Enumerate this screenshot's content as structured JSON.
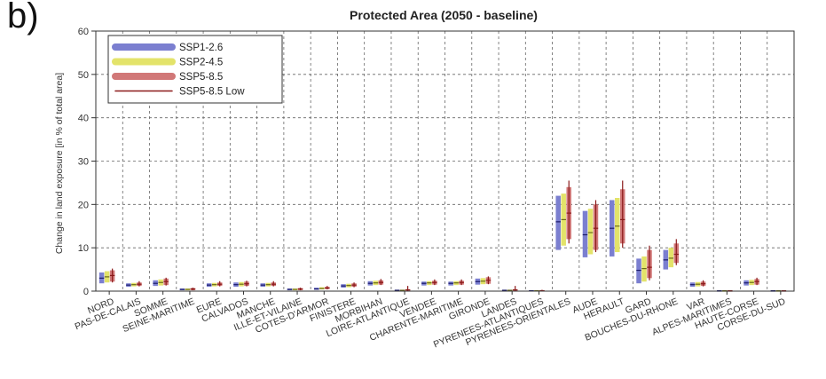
{
  "panel_label": "b)",
  "chart_data": {
    "type": "bar",
    "title": "Protected Area (2050 - baseline)",
    "xlabel": "",
    "ylabel": "Change in land exposure [in % of total area]",
    "ylim": [
      0,
      60
    ],
    "yticks": [
      0,
      10,
      20,
      30,
      40,
      50,
      60
    ],
    "grid": true,
    "legend_position": "top-left",
    "categories": [
      "NORD",
      "PAS-DE-CALAIS",
      "SOMME",
      "SEINE-MARITIME",
      "EURE",
      "CALVADOS",
      "MANCHE",
      "ILLE-ET-VILAINE",
      "COTES-D'ARMOR",
      "FINISTERE",
      "MORBIHAN",
      "LOIRE-ATLANTIQUE",
      "VENDEE",
      "CHARENTE-MARITIME",
      "GIRONDE",
      "LANDES",
      "PYRENEES-ATLANTIQUES",
      "PYRENEES-ORIENTALES",
      "AUDE",
      "HERAULT",
      "GARD",
      "BOUCHES-DU-RHONE",
      "VAR",
      "ALPES-MARITIMES",
      "HAUTE-CORSE",
      "CORSE-DU-SUD"
    ],
    "series": [
      {
        "name": "SSP1-2.6",
        "color": "#7b7fd0",
        "low": [
          1.8,
          1.0,
          1.2,
          0.2,
          1.0,
          1.0,
          1.0,
          0.2,
          0.3,
          0.8,
          1.3,
          0.1,
          1.3,
          1.3,
          1.5,
          0.1,
          0.0,
          9.5,
          7.8,
          8.0,
          1.8,
          5.0,
          1.0,
          0.0,
          1.3,
          0.0
        ],
        "high": [
          4.3,
          1.8,
          2.5,
          0.6,
          1.8,
          2.0,
          1.8,
          0.6,
          0.8,
          1.6,
          2.3,
          0.3,
          2.2,
          2.2,
          2.9,
          0.3,
          0.2,
          22.0,
          18.5,
          21.0,
          7.5,
          9.5,
          2.0,
          0.1,
          2.5,
          0.1
        ],
        "median": [
          3.0,
          1.4,
          1.8,
          0.4,
          1.4,
          1.5,
          1.4,
          0.4,
          0.5,
          1.2,
          1.8,
          0.2,
          1.8,
          1.8,
          2.2,
          0.2,
          0.1,
          16.0,
          13.0,
          14.5,
          4.8,
          7.2,
          1.5,
          0.1,
          1.9,
          0.1
        ]
      },
      {
        "name": "SSP2-4.5",
        "color": "#e3e36a",
        "low": [
          2.0,
          1.1,
          1.3,
          0.2,
          1.1,
          1.1,
          1.1,
          0.2,
          0.4,
          0.9,
          1.4,
          0.1,
          1.4,
          1.4,
          1.6,
          0.1,
          0.0,
          10.5,
          8.5,
          9.0,
          2.2,
          5.5,
          1.1,
          0.0,
          1.4,
          0.0
        ],
        "high": [
          4.6,
          1.9,
          2.7,
          0.6,
          1.9,
          2.1,
          1.9,
          0.6,
          0.9,
          1.7,
          2.4,
          0.3,
          2.3,
          2.3,
          3.0,
          0.3,
          0.2,
          22.5,
          19.0,
          21.5,
          8.0,
          10.0,
          2.1,
          0.1,
          2.6,
          0.1
        ],
        "median": [
          3.3,
          1.5,
          2.0,
          0.4,
          1.5,
          1.6,
          1.5,
          0.4,
          0.6,
          1.3,
          1.9,
          0.2,
          1.9,
          1.9,
          2.3,
          0.2,
          0.1,
          16.5,
          13.5,
          15.0,
          5.2,
          7.6,
          1.6,
          0.1,
          2.0,
          0.1
        ]
      },
      {
        "name": "SSP5-8.5",
        "color": "#d17878",
        "low": [
          2.2,
          1.2,
          1.4,
          0.2,
          1.2,
          1.2,
          1.2,
          0.2,
          0.5,
          1.0,
          1.5,
          0.1,
          1.5,
          1.5,
          1.7,
          0.1,
          0.0,
          12.0,
          9.5,
          11.0,
          3.0,
          6.5,
          1.2,
          0.0,
          1.5,
          0.0
        ],
        "high": [
          4.8,
          2.0,
          2.9,
          0.7,
          2.0,
          2.2,
          2.0,
          0.7,
          1.0,
          1.8,
          2.5,
          0.4,
          2.4,
          2.4,
          3.2,
          0.4,
          0.2,
          24.0,
          20.0,
          23.5,
          9.5,
          11.0,
          2.2,
          0.1,
          2.8,
          0.1
        ],
        "median": [
          3.6,
          1.6,
          2.2,
          0.5,
          1.6,
          1.7,
          1.6,
          0.5,
          0.7,
          1.4,
          2.0,
          0.3,
          2.0,
          2.0,
          2.5,
          0.3,
          0.1,
          18.0,
          14.5,
          16.5,
          5.5,
          8.5,
          1.7,
          0.1,
          2.2,
          0.1
        ]
      },
      {
        "name": "SSP5-8.5 Low",
        "color": "#8b1a1a",
        "low": [
          2.0,
          1.1,
          1.3,
          0.2,
          1.1,
          1.1,
          1.1,
          0.2,
          0.4,
          0.9,
          1.4,
          0.1,
          1.4,
          1.4,
          1.6,
          0.1,
          0.0,
          11.0,
          9.0,
          10.0,
          2.5,
          6.0,
          1.1,
          0.0,
          1.4,
          0.0
        ],
        "high": [
          5.2,
          2.3,
          3.1,
          0.8,
          2.3,
          2.4,
          2.3,
          0.8,
          1.2,
          2.0,
          2.8,
          1.2,
          2.7,
          2.7,
          3.4,
          1.2,
          0.3,
          25.5,
          21.0,
          25.5,
          10.5,
          12.0,
          2.5,
          0.2,
          3.1,
          0.2
        ]
      }
    ]
  }
}
